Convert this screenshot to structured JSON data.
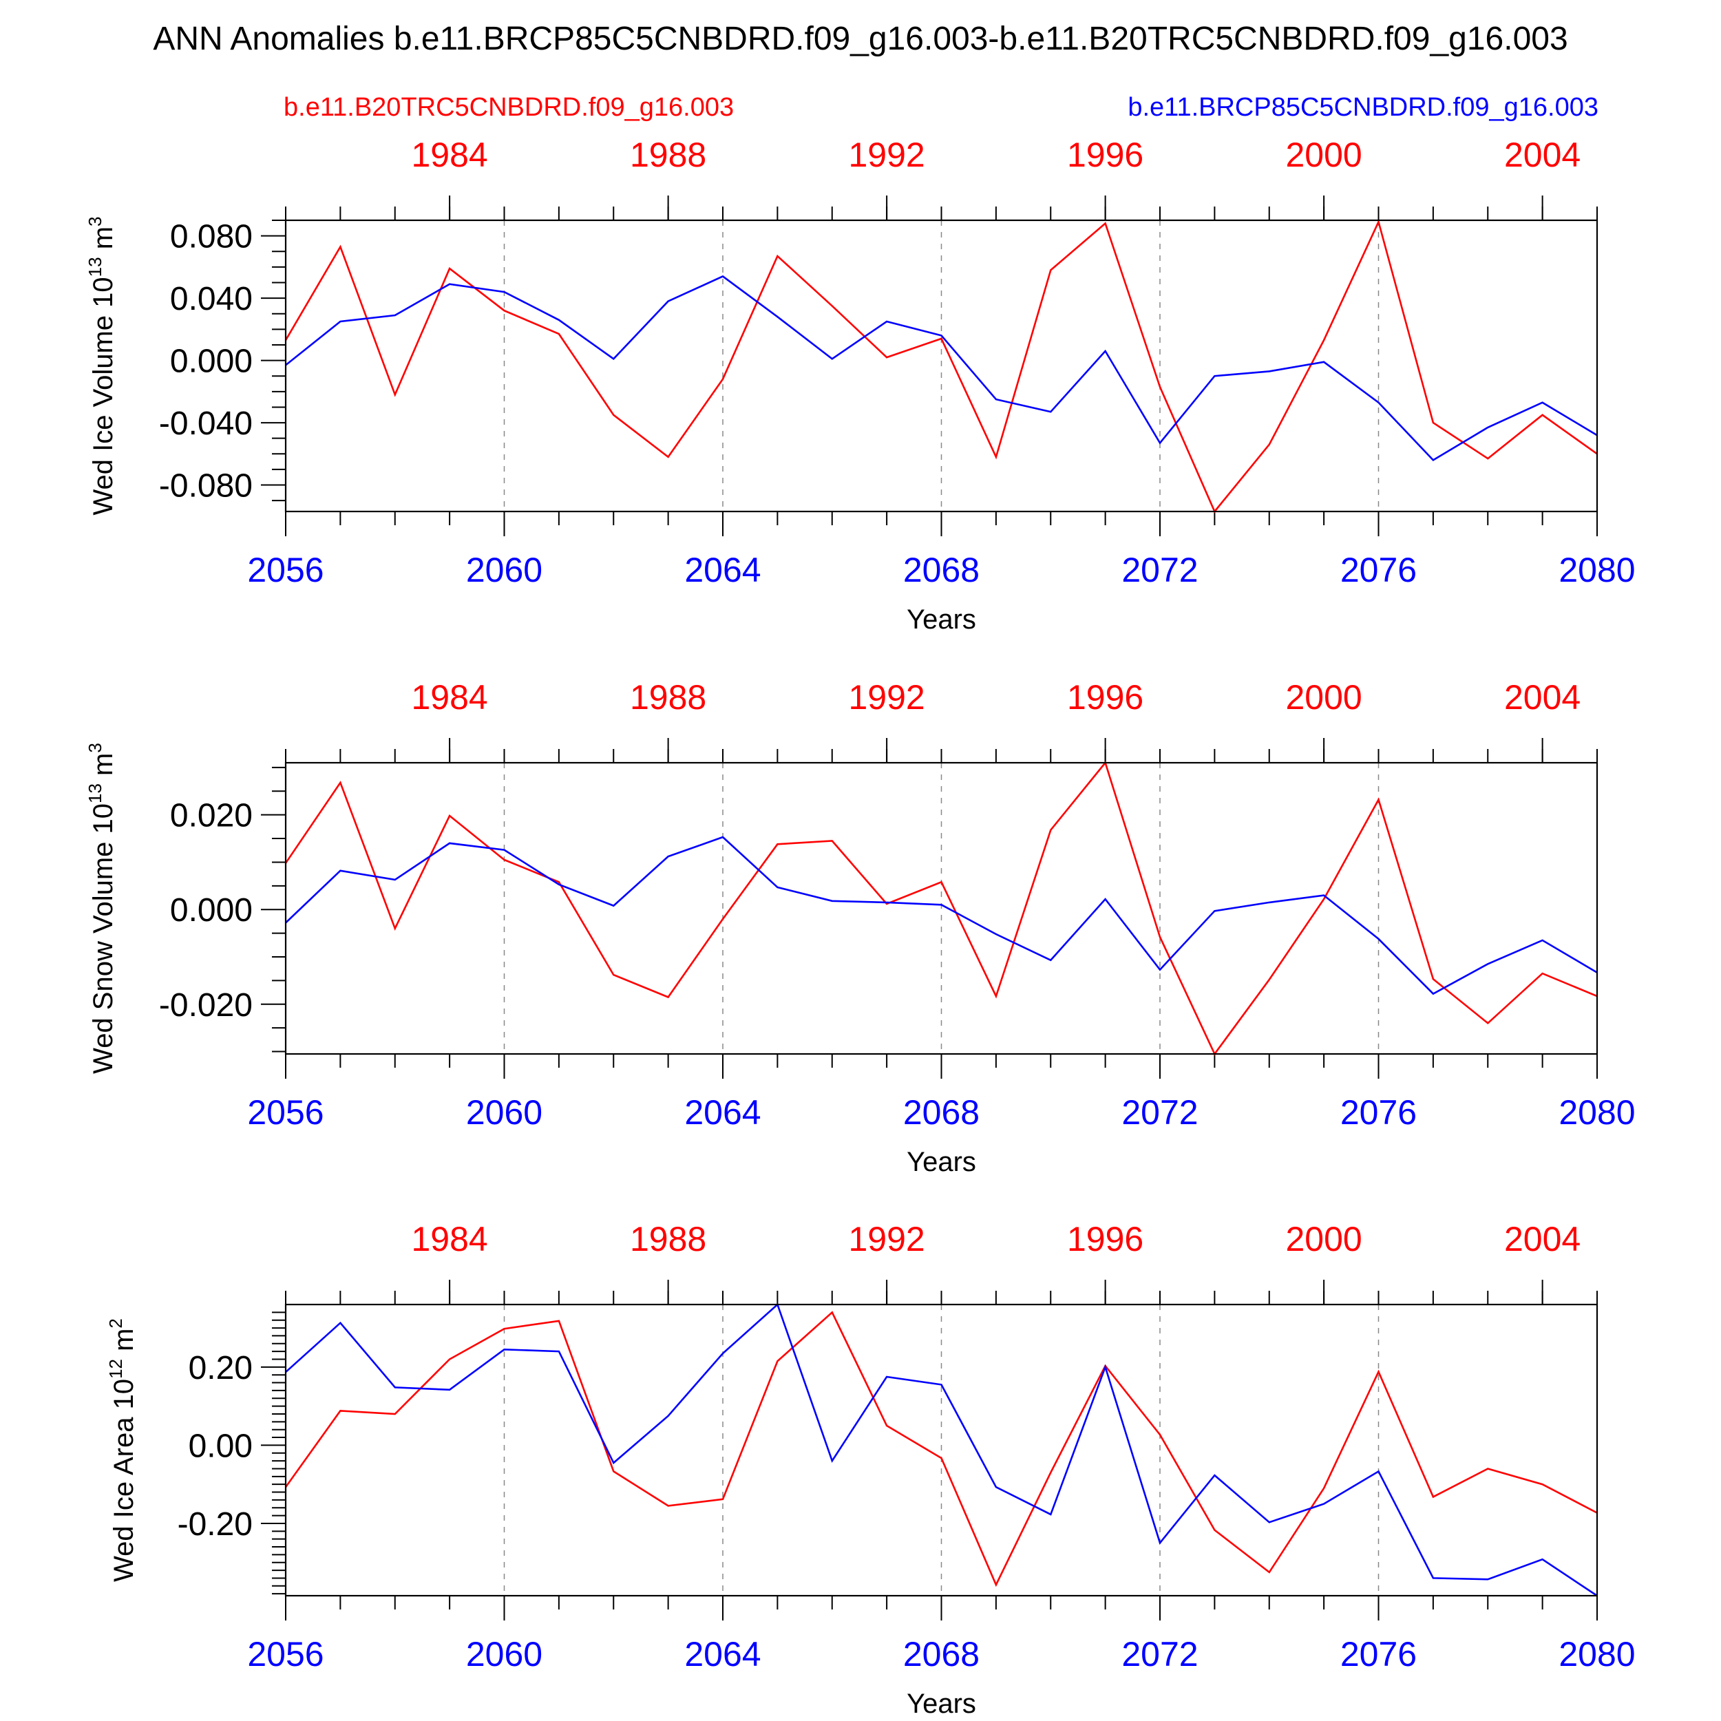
{
  "title": "ANN Anomalies b.e11.BRCP85C5CNBDRD.f09_g16.003-b.e11.B20TRC5CNBDRD.f09_g16.003",
  "legend": {
    "red_label": "b.e11.B20TRC5CNBDRD.f09_g16.003",
    "blue_label": "b.e11.BRCP85C5CNBDRD.f09_g16.003"
  },
  "colors": {
    "red": "#ff0000",
    "blue": "#0000ff",
    "axis": "#000000",
    "grid": "#888888"
  },
  "chart_data": [
    {
      "type": "line",
      "ylabel": "Wed Ice Volume 10",
      "ylabel_exp": "13",
      "ylabel_unit": " m",
      "ylabel_unit_exp": "3",
      "xlabel": "Years",
      "ylim": [
        -0.097,
        0.09
      ],
      "yticks": [
        0.08,
        0.04,
        0.0,
        -0.04,
        -0.08
      ],
      "ytick_labels": [
        "0.080",
        "0.040",
        "0.000",
        "-0.040",
        "-0.080"
      ],
      "yminor": [
        0.09,
        0.07,
        0.06,
        0.05,
        0.03,
        0.02,
        0.01,
        -0.01,
        -0.02,
        -0.03,
        -0.05,
        -0.06,
        -0.07,
        -0.09
      ],
      "x_bottom": [
        2056,
        2057,
        2058,
        2059,
        2060,
        2061,
        2062,
        2063,
        2064,
        2065,
        2066,
        2067,
        2068,
        2069,
        2070,
        2071,
        2072,
        2073,
        2074,
        2075,
        2076,
        2077,
        2078,
        2079,
        2080
      ],
      "bottom_ticks": [
        "2056",
        "2060",
        "2064",
        "2068",
        "2072",
        "2076",
        "2080"
      ],
      "top_ticks": [
        "1984",
        "1988",
        "1992",
        "1996",
        "2000",
        "2004"
      ],
      "series": [
        {
          "name": "b.e11.B20TRC5CNBDRD.f09_g16.003",
          "color": "red",
          "values": [
            0.013,
            0.073,
            -0.022,
            0.059,
            0.032,
            0.017,
            -0.035,
            -0.062,
            -0.012,
            0.067,
            0.035,
            0.002,
            0.014,
            -0.062,
            0.058,
            0.088,
            -0.017,
            -0.097,
            -0.054,
            0.013,
            0.089,
            -0.04,
            -0.063,
            -0.035,
            -0.06
          ]
        },
        {
          "name": "b.e11.BRCP85C5CNBDRD.f09_g16.003",
          "color": "blue",
          "values": [
            -0.003,
            0.025,
            0.029,
            0.049,
            0.044,
            0.026,
            0.001,
            0.038,
            0.054,
            0.028,
            0.001,
            0.025,
            0.016,
            -0.025,
            -0.033,
            0.006,
            -0.053,
            -0.01,
            -0.007,
            -0.001,
            -0.027,
            -0.064,
            -0.043,
            -0.027,
            -0.048
          ]
        }
      ]
    },
    {
      "type": "line",
      "ylabel": "Wed Snow Volume 10",
      "ylabel_exp": "13",
      "ylabel_unit": " m",
      "ylabel_unit_exp": "3",
      "xlabel": "Years",
      "ylim": [
        -0.0305,
        0.031
      ],
      "yticks": [
        0.02,
        0.0,
        -0.02
      ],
      "ytick_labels": [
        "0.020",
        "0.000",
        "-0.020"
      ],
      "yminor": [
        0.03,
        0.025,
        0.015,
        0.01,
        0.005,
        -0.005,
        -0.01,
        -0.015,
        -0.025,
        -0.03
      ],
      "x_bottom": [
        2056,
        2057,
        2058,
        2059,
        2060,
        2061,
        2062,
        2063,
        2064,
        2065,
        2066,
        2067,
        2068,
        2069,
        2070,
        2071,
        2072,
        2073,
        2074,
        2075,
        2076,
        2077,
        2078,
        2079,
        2080
      ],
      "bottom_ticks": [
        "2056",
        "2060",
        "2064",
        "2068",
        "2072",
        "2076",
        "2080"
      ],
      "top_ticks": [
        "1984",
        "1988",
        "1992",
        "1996",
        "2000",
        "2004"
      ],
      "series": [
        {
          "name": "b.e11.B20TRC5CNBDRD.f09_g16.003",
          "color": "red",
          "values": [
            0.0098,
            0.0268,
            -0.004,
            0.0198,
            0.0105,
            0.0058,
            -0.0138,
            -0.0185,
            -0.002,
            0.0138,
            0.0145,
            0.0012,
            0.0058,
            -0.0183,
            0.0168,
            0.031,
            -0.0058,
            -0.0305,
            -0.0148,
            0.0022,
            0.0232,
            -0.0147,
            -0.024,
            -0.0135,
            -0.0183
          ]
        },
        {
          "name": "b.e11.BRCP85C5CNBDRD.f09_g16.003",
          "color": "blue",
          "values": [
            -0.0028,
            0.0082,
            0.0063,
            0.014,
            0.0126,
            0.0053,
            0.0008,
            0.0112,
            0.0153,
            0.0047,
            0.0018,
            0.0015,
            0.001,
            -0.0052,
            -0.0107,
            0.0022,
            -0.0127,
            -0.0003,
            0.0015,
            0.003,
            -0.0062,
            -0.0178,
            -0.0115,
            -0.0065,
            -0.0133
          ]
        }
      ]
    },
    {
      "type": "line",
      "ylabel": "Wed Ice Area 10",
      "ylabel_exp": "12",
      "ylabel_unit": " m",
      "ylabel_unit_exp": "2",
      "xlabel": "Years",
      "ylim": [
        -0.385,
        0.36
      ],
      "yticks": [
        0.2,
        0.0,
        -0.2
      ],
      "ytick_labels": [
        "0.20",
        "0.00",
        "-0.20"
      ],
      "yminor": [
        0.34,
        0.32,
        0.3,
        0.28,
        0.26,
        0.24,
        0.22,
        0.18,
        0.16,
        0.14,
        0.12,
        0.1,
        0.08,
        0.06,
        0.04,
        0.02,
        -0.02,
        -0.04,
        -0.06,
        -0.08,
        -0.1,
        -0.12,
        -0.14,
        -0.16,
        -0.18,
        -0.22,
        -0.24,
        -0.26,
        -0.28,
        -0.3,
        -0.32,
        -0.34,
        -0.36,
        -0.38
      ],
      "x_bottom": [
        2056,
        2057,
        2058,
        2059,
        2060,
        2061,
        2062,
        2063,
        2064,
        2065,
        2066,
        2067,
        2068,
        2069,
        2070,
        2071,
        2072,
        2073,
        2074,
        2075,
        2076,
        2077,
        2078,
        2079,
        2080
      ],
      "bottom_ticks": [
        "2056",
        "2060",
        "2064",
        "2068",
        "2072",
        "2076",
        "2080"
      ],
      "top_ticks": [
        "1984",
        "1988",
        "1992",
        "1996",
        "2000",
        "2004"
      ],
      "series": [
        {
          "name": "b.e11.B20TRC5CNBDRD.f09_g16.003",
          "color": "red",
          "values": [
            -0.107,
            0.088,
            0.08,
            0.22,
            0.298,
            0.318,
            -0.067,
            -0.155,
            -0.138,
            0.215,
            0.34,
            0.05,
            -0.033,
            -0.357,
            -0.07,
            0.203,
            0.027,
            -0.217,
            -0.325,
            -0.11,
            0.188,
            -0.132,
            -0.06,
            -0.1,
            -0.173
          ]
        },
        {
          "name": "b.e11.BRCP85C5CNBDRD.f09_g16.003",
          "color": "blue",
          "values": [
            0.187,
            0.313,
            0.148,
            0.142,
            0.245,
            0.24,
            -0.045,
            0.075,
            0.235,
            0.36,
            -0.04,
            0.175,
            0.155,
            -0.107,
            -0.177,
            0.2,
            -0.25,
            -0.077,
            -0.197,
            -0.15,
            -0.067,
            -0.34,
            -0.343,
            -0.292,
            -0.385
          ]
        }
      ]
    }
  ]
}
